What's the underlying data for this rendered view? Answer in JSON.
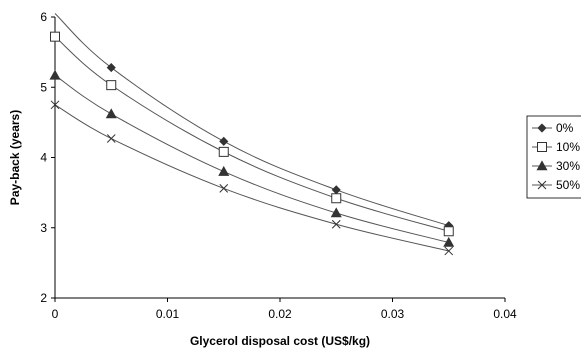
{
  "chart_data": {
    "type": "line",
    "title": "",
    "xlabel": "Glycerol disposal cost (US$/kg)",
    "ylabel": "Pay-back (years)",
    "xlim": [
      0,
      0.04
    ],
    "ylim": [
      2,
      6
    ],
    "x_ticks": [
      "0",
      "0.01",
      "0.02",
      "0.03",
      "0.04"
    ],
    "y_ticks": [
      "2",
      "3",
      "4",
      "5",
      "6"
    ],
    "grid": false,
    "legend_position": "right",
    "x": [
      0,
      0.005,
      0.015,
      0.025,
      0.035
    ],
    "series": [
      {
        "name": "0%",
        "marker": "diamond",
        "color": "#333333",
        "values": [
          6.05,
          5.28,
          4.23,
          3.54,
          3.03
        ],
        "plot_markers": [
          false,
          true,
          true,
          true,
          true
        ]
      },
      {
        "name": "10%",
        "marker": "open-square",
        "color": "#333333",
        "values": [
          5.72,
          5.03,
          4.08,
          3.42,
          2.95
        ],
        "plot_markers": [
          true,
          true,
          true,
          true,
          true
        ]
      },
      {
        "name": "30%",
        "marker": "triangle",
        "color": "#333333",
        "values": [
          5.17,
          4.62,
          3.8,
          3.21,
          2.79
        ],
        "plot_markers": [
          true,
          true,
          true,
          true,
          true
        ]
      },
      {
        "name": "50%",
        "marker": "x",
        "color": "#333333",
        "values": [
          4.75,
          4.27,
          3.56,
          3.05,
          2.67
        ],
        "plot_markers": [
          true,
          true,
          true,
          true,
          true
        ]
      }
    ]
  }
}
